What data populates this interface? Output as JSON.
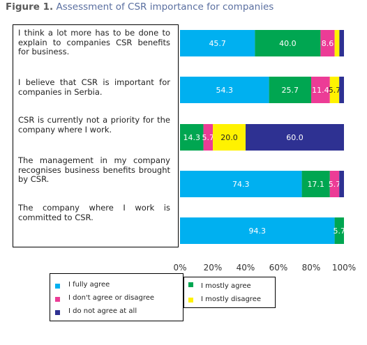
{
  "figure_label": "Figure 1.",
  "figure_title": "Assessment of CSR importance for companies",
  "chart_data": {
    "type": "bar",
    "orientation": "horizontal",
    "stacked": true,
    "categories": [
      "I think a lot more has to be done to explain to companies CSR benefits for business.",
      "I believe that CSR is important for companies in Serbia.",
      "CSR is currently not a priority for the company where I work.",
      "The management in my company recognises business benefits brought by CSR.",
      "The company where I work is committed to CSR."
    ],
    "series": [
      {
        "name": "I fully agree",
        "color": "#00B0F0",
        "values": [
          45.7,
          54.3,
          0,
          74.3,
          94.3
        ]
      },
      {
        "name": "I mostly agree",
        "color": "#00A651",
        "values": [
          40.0,
          25.7,
          14.3,
          17.1,
          5.7
        ]
      },
      {
        "name": "I don't agree or disagree",
        "color": "#EC3C96",
        "values": [
          8.6,
          11.4,
          5.7,
          5.7,
          0
        ]
      },
      {
        "name": "I mostly disagree",
        "color": "#FFF200",
        "values": [
          2.9,
          5.7,
          20.0,
          0,
          0
        ]
      },
      {
        "name": "I do not agree at all",
        "color": "#2E3192",
        "values": [
          2.8,
          2.9,
          60.0,
          2.9,
          0
        ]
      }
    ],
    "data_labels": [
      [
        "45.7",
        "40.0",
        "8.6",
        "",
        ""
      ],
      [
        "54.3",
        "25.7",
        "11.4",
        "5.7",
        ""
      ],
      [
        "",
        "14.3",
        "5.7",
        "20.0",
        "60.0"
      ],
      [
        "74.3",
        "17.1",
        "5.7",
        "",
        ""
      ],
      [
        "94.3",
        "5.7",
        "",
        "",
        ""
      ]
    ],
    "xlim": [
      0,
      100
    ],
    "x_ticks": [
      "0%",
      "20%",
      "40%",
      "60%",
      "80%",
      "100%"
    ],
    "grid": false,
    "legend_position": "bottom"
  }
}
